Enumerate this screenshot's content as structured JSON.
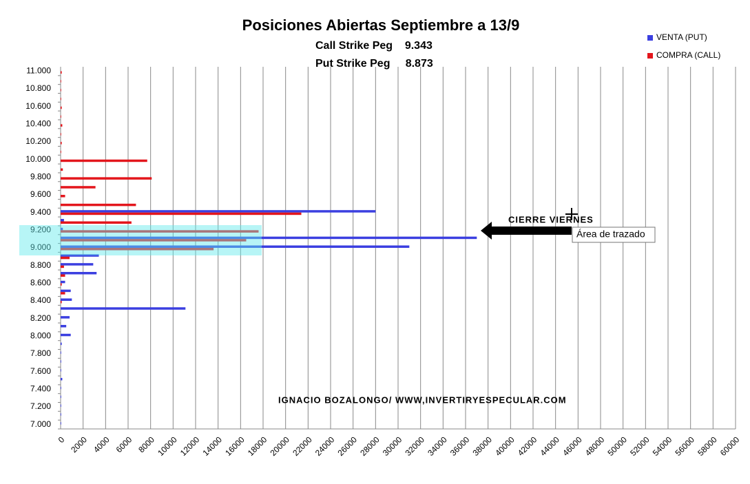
{
  "chart_data": {
    "type": "bar",
    "orientation": "horizontal",
    "title": "Posiciones Abiertas Septiembre a 13/9",
    "subtitle_lines": [
      "Call Strike Peg    9.343",
      "Put Strike Peg     8.873"
    ],
    "annotations": [
      "CIERRE VIERNES",
      "IGNACIO BOZALONGO/ WWW,INVERTIRYESPECULAR.COM"
    ],
    "tooltip": "Área de trazado",
    "categories": [
      "7.000",
      null,
      "7.200",
      null,
      "7.400",
      null,
      "7.600",
      null,
      "7.800",
      null,
      "8.000",
      null,
      "8.200",
      null,
      "8.400",
      null,
      "8.600",
      null,
      "8.800",
      null,
      "9.000",
      null,
      "9.200",
      null,
      "9.400",
      null,
      "9.600",
      null,
      "9.800",
      null,
      "10.000",
      null,
      "10.200",
      null,
      "10.400",
      null,
      "10.600",
      null,
      "10.800",
      null,
      "11.000"
    ],
    "series": [
      {
        "name": "VENTA (PUT)",
        "color": "#3b3fe0",
        "values": [
          50,
          50,
          50,
          50,
          50,
          150,
          50,
          50,
          50,
          100,
          900,
          500,
          800,
          11100,
          1000,
          900,
          400,
          3200,
          2900,
          3400,
          31000,
          37000,
          200,
          300,
          28000,
          0,
          0,
          0,
          0,
          0,
          0,
          0,
          0,
          0,
          0,
          0,
          0,
          0,
          0,
          0,
          0
        ]
      },
      {
        "name": "COMPRA (CALL)",
        "color": "#e3161c",
        "values": [
          0,
          0,
          0,
          0,
          0,
          0,
          0,
          0,
          0,
          0,
          0,
          0,
          0,
          0,
          100,
          400,
          100,
          400,
          300,
          800,
          13600,
          16500,
          17600,
          6300,
          21400,
          6700,
          400,
          3100,
          8100,
          200,
          7700,
          50,
          100,
          50,
          150,
          50,
          100,
          50,
          50,
          50,
          100
        ]
      }
    ],
    "xlim": [
      0,
      60000
    ],
    "xticks": [
      0,
      2000,
      4000,
      6000,
      8000,
      10000,
      12000,
      14000,
      16000,
      18000,
      20000,
      22000,
      24000,
      26000,
      28000,
      30000,
      32000,
      34000,
      36000,
      38000,
      40000,
      42000,
      44000,
      46000,
      48000,
      50000,
      52000,
      54000,
      56000,
      58000,
      60000
    ],
    "grid": true,
    "legend": "top-right"
  }
}
